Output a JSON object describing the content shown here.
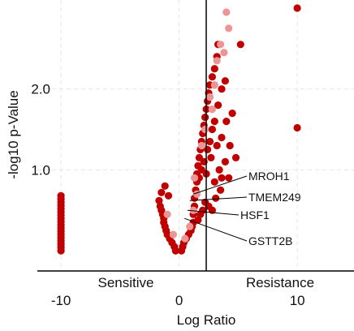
{
  "chart_data": {
    "type": "scatter",
    "xlabel": "Log Ratio",
    "ylabel": "-log10 p-Value",
    "xlim": [
      -12,
      14.8
    ],
    "ylim": [
      -0.25,
      3.1
    ],
    "x_ticks": [
      {
        "value": -10,
        "label": "-10"
      },
      {
        "value": 0,
        "label": "0"
      },
      {
        "value": 10,
        "label": "10"
      }
    ],
    "y_ticks": [
      {
        "value": 1.0,
        "label": "1.0"
      },
      {
        "value": 2.0,
        "label": "2.0"
      }
    ],
    "region_labels": {
      "left": "Sensitive",
      "right": "Resistance"
    },
    "grid": "dashed, faint",
    "colors": {
      "primary": "#c00000",
      "faint": "#ec9595",
      "axis": "#000000",
      "grid": "#e6e6e6"
    },
    "annotations": [
      {
        "label": "MROH1",
        "x": 1.2,
        "y": 0.7
      },
      {
        "label": "TMEM249",
        "x": 0.9,
        "y": 0.62
      },
      {
        "label": "HSF1",
        "x": 0.7,
        "y": 0.5
      },
      {
        "label": "GSTT2B",
        "x": 0.45,
        "y": 0.4
      }
    ],
    "series": [
      {
        "group": "sensitive-column",
        "color": "#c00000",
        "points": [
          [
            -10,
            0.0
          ],
          [
            -10,
            0.04
          ],
          [
            -10,
            0.08
          ],
          [
            -10,
            0.12
          ],
          [
            -10,
            0.16
          ],
          [
            -10,
            0.2
          ],
          [
            -10,
            0.24
          ],
          [
            -10,
            0.28
          ],
          [
            -10,
            0.32
          ],
          [
            -10,
            0.36
          ],
          [
            -10,
            0.4
          ],
          [
            -10,
            0.44
          ],
          [
            -10,
            0.48
          ],
          [
            -10,
            0.52
          ],
          [
            -10,
            0.56
          ],
          [
            -10,
            0.6
          ],
          [
            -10,
            0.64
          ],
          [
            -10,
            0.68
          ]
        ]
      },
      {
        "group": "left-of-zero",
        "color": "#c00000",
        "points": [
          [
            -0.3,
            0.0
          ],
          [
            -0.4,
            0.05
          ],
          [
            -0.6,
            0.1
          ],
          [
            -0.8,
            0.15
          ],
          [
            -1.0,
            0.2
          ],
          [
            -1.1,
            0.25
          ],
          [
            -1.2,
            0.3
          ],
          [
            -1.3,
            0.35
          ],
          [
            -1.3,
            0.4
          ],
          [
            -1.4,
            0.45
          ],
          [
            -1.5,
            0.5
          ],
          [
            -1.6,
            0.55
          ],
          [
            -1.7,
            0.62
          ],
          [
            -1.5,
            0.72
          ],
          [
            -1.2,
            0.8
          ],
          [
            -0.9,
            0.68
          ]
        ]
      },
      {
        "group": "right-of-zero-main",
        "color": "#c00000",
        "points": [
          [
            0.2,
            0.0
          ],
          [
            0.3,
            0.05
          ],
          [
            0.4,
            0.1
          ],
          [
            0.6,
            0.15
          ],
          [
            0.8,
            0.2
          ],
          [
            1.0,
            0.25
          ],
          [
            1.1,
            0.3
          ],
          [
            1.2,
            0.35
          ],
          [
            1.2,
            0.45
          ],
          [
            1.3,
            0.55
          ],
          [
            1.3,
            0.65
          ],
          [
            1.4,
            0.75
          ],
          [
            1.5,
            0.85
          ],
          [
            1.5,
            0.95
          ],
          [
            1.6,
            1.05
          ],
          [
            1.7,
            1.15
          ],
          [
            1.8,
            1.25
          ],
          [
            1.9,
            1.35
          ],
          [
            2.0,
            1.45
          ],
          [
            2.1,
            1.55
          ],
          [
            2.2,
            1.65
          ],
          [
            2.3,
            1.75
          ],
          [
            2.4,
            1.85
          ],
          [
            2.5,
            1.95
          ],
          [
            2.6,
            2.05
          ],
          [
            2.8,
            2.15
          ],
          [
            3.0,
            2.25
          ],
          [
            3.2,
            2.4
          ],
          [
            3.3,
            2.55
          ],
          [
            1.7,
            0.9
          ],
          [
            1.9,
            1.0
          ],
          [
            2.1,
            1.1
          ],
          [
            2.4,
            1.25
          ],
          [
            2.6,
            1.35
          ],
          [
            2.8,
            1.5
          ],
          [
            3.0,
            1.6
          ],
          [
            3.3,
            1.8
          ],
          [
            3.6,
            2.0
          ],
          [
            3.9,
            2.1
          ],
          [
            2.3,
            0.95
          ],
          [
            2.7,
            1.15
          ],
          [
            3.2,
            1.3
          ],
          [
            3.6,
            1.4
          ],
          [
            4.0,
            1.6
          ],
          [
            3.4,
            1.0
          ],
          [
            3.9,
            1.1
          ],
          [
            4.3,
            1.3
          ],
          [
            3.0,
            0.85
          ],
          [
            3.6,
            0.9
          ],
          [
            4.2,
            0.9
          ],
          [
            3.5,
            0.75
          ],
          [
            3.1,
            0.65
          ],
          [
            2.5,
            0.55
          ],
          [
            2.0,
            0.5
          ],
          [
            2.8,
            0.5
          ],
          [
            2.2,
            0.6
          ],
          [
            1.8,
            0.45
          ],
          [
            1.6,
            0.38
          ]
        ]
      },
      {
        "group": "right-of-zero-faint",
        "color": "#ec9595",
        "points": [
          [
            0.5,
            0.15
          ],
          [
            0.9,
            0.3
          ],
          [
            1.2,
            0.5
          ],
          [
            1.5,
            0.7
          ],
          [
            -0.5,
            0.2
          ],
          [
            -1.0,
            0.45
          ],
          [
            2.2,
            1.5
          ],
          [
            2.6,
            1.9
          ],
          [
            3.0,
            2.05
          ],
          [
            2.8,
            1.75
          ],
          [
            1.9,
            1.3
          ],
          [
            3.5,
            2.55
          ],
          [
            4.2,
            2.75
          ],
          [
            4.0,
            2.95
          ],
          [
            3.8,
            2.45
          ],
          [
            3.2,
            2.35
          ],
          [
            1.3,
            0.9
          ]
        ]
      },
      {
        "group": "outliers",
        "color": "#c00000",
        "points": [
          [
            10.0,
            3.0
          ],
          [
            10.0,
            1.52
          ],
          [
            5.2,
            2.55
          ],
          [
            4.5,
            1.7
          ],
          [
            4.8,
            1.15
          ]
        ]
      }
    ]
  }
}
